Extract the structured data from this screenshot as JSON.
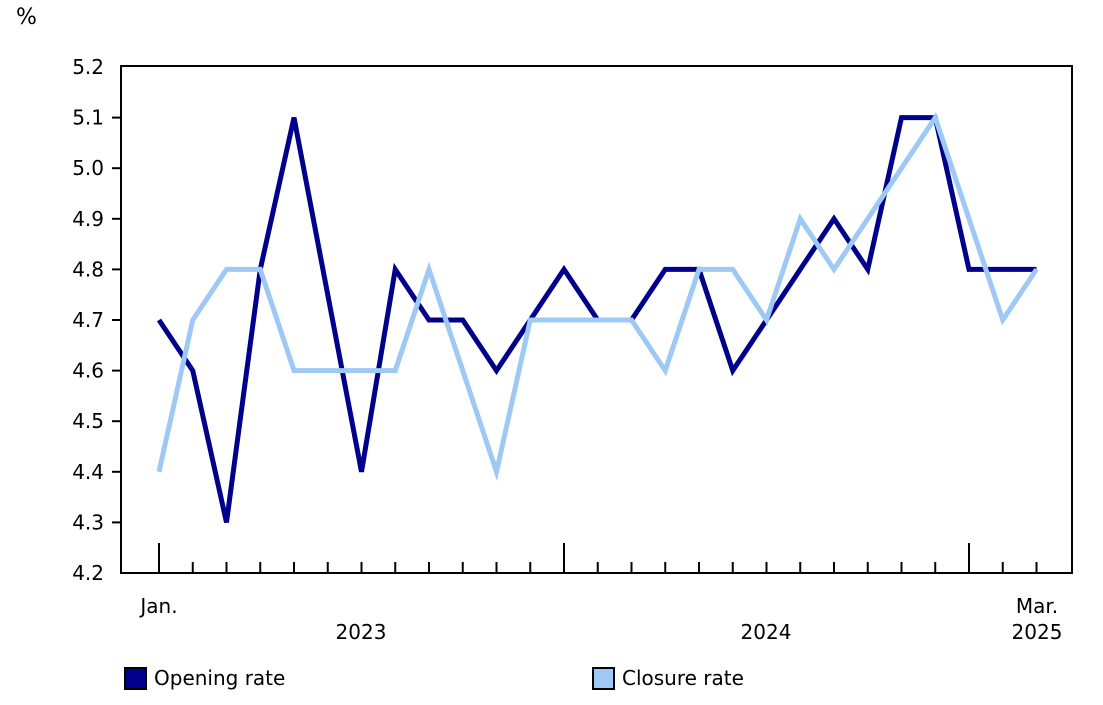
{
  "chart_data": {
    "type": "line",
    "title": "",
    "unit_label": "%",
    "ylabel": "%",
    "xlabel": "",
    "ylim": [
      4.2,
      5.2
    ],
    "y_tick_labels": [
      "5.2",
      "5.1",
      "5.0",
      "4.9",
      "4.8",
      "4.7",
      "4.6",
      "4.5",
      "4.4",
      "4.3",
      "4.2"
    ],
    "grid": "off",
    "legend_position": "bottom",
    "x_frequency": "monthly",
    "categories": [
      "Jan. 2023",
      "Feb. 2023",
      "Mar. 2023",
      "Apr. 2023",
      "May 2023",
      "Jun. 2023",
      "Jul. 2023",
      "Aug. 2023",
      "Sep. 2023",
      "Oct. 2023",
      "Nov. 2023",
      "Dec. 2023",
      "Jan. 2024",
      "Feb. 2024",
      "Mar. 2024",
      "Apr. 2024",
      "May 2024",
      "Jun. 2024",
      "Jul. 2024",
      "Aug. 2024",
      "Sep. 2024",
      "Oct. 2024",
      "Nov. 2024",
      "Dec. 2024",
      "Jan. 2025",
      "Feb. 2025",
      "Mar. 2025"
    ],
    "series": [
      {
        "name": "Opening rate",
        "color": "#00008b",
        "values": [
          4.7,
          4.6,
          4.3,
          4.8,
          5.1,
          4.75,
          4.4,
          4.8,
          4.7,
          4.7,
          4.6,
          4.7,
          4.8,
          4.7,
          4.7,
          4.8,
          4.8,
          4.6,
          4.7,
          4.8,
          4.9,
          4.8,
          5.1,
          5.1,
          4.8,
          4.8,
          4.8
        ]
      },
      {
        "name": "Closure rate",
        "color": "#9dc9f4",
        "values": [
          4.4,
          4.7,
          4.8,
          4.8,
          4.6,
          4.6,
          4.6,
          4.6,
          4.8,
          4.6,
          4.4,
          4.7,
          4.7,
          4.7,
          4.7,
          4.6,
          4.8,
          4.8,
          4.7,
          4.9,
          4.8,
          4.9,
          5.0,
          5.1,
          4.9,
          4.7,
          4.8
        ]
      }
    ],
    "axis_labels": {
      "first_tick_month": "Jan.",
      "year_2023": "2023",
      "year_2024": "2024",
      "last_tick_month": "Mar.",
      "last_tick_year": "2025"
    },
    "axis_color": "#000000",
    "background_color": "#ffffff"
  }
}
